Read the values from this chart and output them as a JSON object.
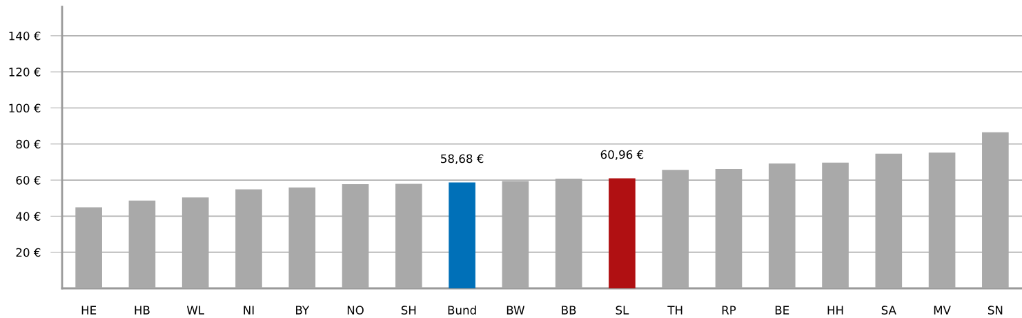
{
  "chart_data": {
    "type": "bar",
    "categories": [
      "HE",
      "HB",
      "WL",
      "NI",
      "BY",
      "NO",
      "SH",
      "Bund",
      "BW",
      "BB",
      "SL",
      "TH",
      "RP",
      "BE",
      "HH",
      "SA",
      "MV",
      "SN"
    ],
    "values": [
      44.9,
      48.7,
      50.4,
      54.9,
      55.9,
      57.7,
      57.9,
      58.68,
      59.5,
      60.8,
      60.96,
      65.7,
      66.1,
      69.2,
      69.7,
      74.7,
      75.2,
      86.5
    ],
    "colors": [
      "#a9a9a9",
      "#a9a9a9",
      "#a9a9a9",
      "#a9a9a9",
      "#a9a9a9",
      "#a9a9a9",
      "#a9a9a9",
      "#0070b8",
      "#a9a9a9",
      "#a9a9a9",
      "#b01012",
      "#a9a9a9",
      "#a9a9a9",
      "#a9a9a9",
      "#a9a9a9",
      "#a9a9a9",
      "#a9a9a9",
      "#a9a9a9"
    ],
    "value_labels": [
      null,
      null,
      null,
      null,
      null,
      null,
      null,
      "58,68 €",
      null,
      null,
      "60,96 €",
      null,
      null,
      null,
      null,
      null,
      null,
      null
    ],
    "ylim": [
      0,
      156
    ],
    "yticks": [
      {
        "value": 20,
        "label": "20 €"
      },
      {
        "value": 40,
        "label": "40 €"
      },
      {
        "value": 60,
        "label": "60 €"
      },
      {
        "value": 80,
        "label": "80 €"
      },
      {
        "value": 100,
        "label": "100 €"
      },
      {
        "value": 120,
        "label": "120 €"
      },
      {
        "value": 140,
        "label": "140 €"
      }
    ],
    "grid": "y"
  }
}
